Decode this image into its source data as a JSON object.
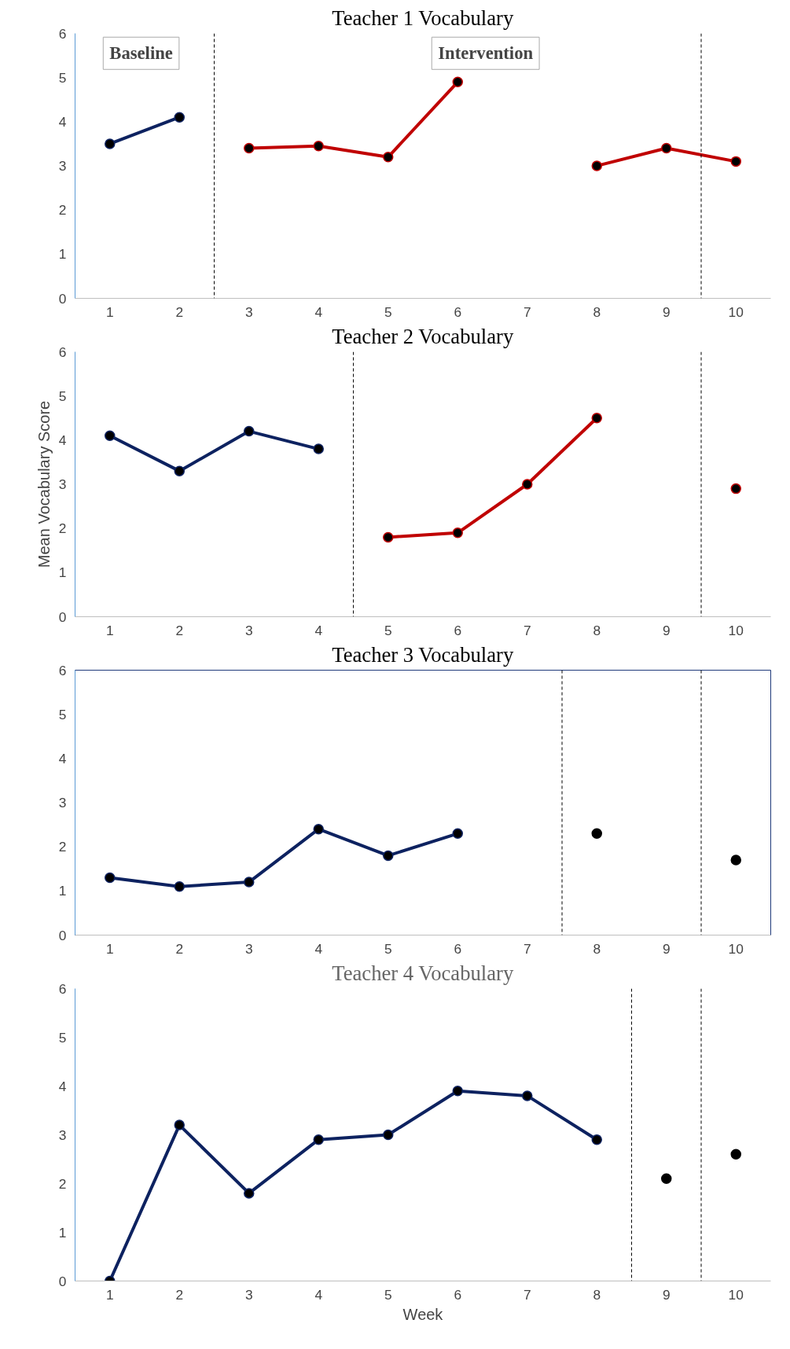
{
  "chart_data": [
    {
      "type": "line",
      "title": "Teacher 1 Vocabulary",
      "xlim": [
        0.5,
        10.5
      ],
      "xticks": [
        1,
        2,
        3,
        4,
        5,
        6,
        7,
        8,
        9,
        10
      ],
      "ylim": [
        0,
        6
      ],
      "yticks": [
        0,
        1,
        2,
        3,
        4,
        5,
        6
      ],
      "grid": false,
      "marker": "circle",
      "line_style": "solid",
      "annotations": [
        "Baseline",
        "Intervention"
      ],
      "ref_lines": [
        {
          "axis": "x",
          "value": 2.5,
          "color": "#000000",
          "line_style": "dashed"
        },
        {
          "axis": "x",
          "value": 9.5,
          "color": "#000000",
          "line_style": "dashed"
        }
      ],
      "series": [
        {
          "color": "#0d2260",
          "x": [
            1,
            2
          ],
          "values": [
            3.5,
            4.1
          ]
        },
        {
          "color": "#c00000",
          "x": [
            3,
            4,
            5,
            6,
            7,
            8,
            9,
            10
          ],
          "values": [
            3.4,
            3.45,
            3.2,
            4.9,
            null,
            3.0,
            3.4,
            3.1
          ]
        }
      ]
    },
    {
      "type": "line",
      "title": "Teacher 2 Vocabulary",
      "ylabel": "Mean Vocabulary Score",
      "xlim": [
        0.5,
        10.5
      ],
      "xticks": [
        1,
        2,
        3,
        4,
        5,
        6,
        7,
        8,
        9,
        10
      ],
      "ylim": [
        0,
        6
      ],
      "yticks": [
        0,
        1,
        2,
        3,
        4,
        5,
        6
      ],
      "grid": false,
      "marker": "circle",
      "line_style": "solid",
      "ref_lines": [
        {
          "axis": "x",
          "value": 4.5,
          "color": "#000000",
          "line_style": "dashed"
        },
        {
          "axis": "x",
          "value": 9.5,
          "color": "#000000",
          "line_style": "dashed"
        }
      ],
      "series": [
        {
          "color": "#0d2260",
          "x": [
            1,
            2,
            3,
            4
          ],
          "values": [
            4.1,
            3.3,
            4.2,
            3.8
          ]
        },
        {
          "color": "#c00000",
          "x": [
            5,
            6,
            7,
            8
          ],
          "values": [
            1.8,
            1.9,
            3.0,
            4.5
          ]
        },
        {
          "type": "scatter",
          "color": "#c00000",
          "x": [
            10
          ],
          "values": [
            2.9
          ]
        }
      ]
    },
    {
      "type": "line",
      "title": "Teacher 3 Vocabulary",
      "xlim": [
        0.5,
        10.5
      ],
      "xticks": [
        1,
        2,
        3,
        4,
        5,
        6,
        7,
        8,
        9,
        10
      ],
      "ylim": [
        0,
        6
      ],
      "yticks": [
        0,
        1,
        2,
        3,
        4,
        5,
        6
      ],
      "grid": false,
      "marker": "circle",
      "line_style": "solid",
      "ref_lines": [
        {
          "axis": "x",
          "value": 7.5,
          "color": "#000000",
          "line_style": "dashed"
        },
        {
          "axis": "x",
          "value": 9.5,
          "color": "#000000",
          "line_style": "dashed"
        }
      ],
      "series": [
        {
          "color": "#0d2260",
          "x": [
            1,
            2,
            3,
            4,
            5,
            6
          ],
          "values": [
            1.3,
            1.1,
            1.2,
            2.4,
            1.8,
            2.3
          ]
        },
        {
          "type": "scatter",
          "color": "#000000",
          "x": [
            8,
            10
          ],
          "values": [
            2.3,
            1.7
          ]
        }
      ]
    },
    {
      "type": "line",
      "title": "Teacher 4 Vocabulary",
      "xlabel": "Week",
      "xlim": [
        0.5,
        10.5
      ],
      "xticks": [
        1,
        2,
        3,
        4,
        5,
        6,
        7,
        8,
        9,
        10
      ],
      "ylim": [
        0,
        6
      ],
      "yticks": [
        0,
        1,
        2,
        3,
        4,
        5,
        6
      ],
      "grid": false,
      "marker": "circle",
      "line_style": "solid",
      "ref_lines": [
        {
          "axis": "x",
          "value": 8.5,
          "color": "#000000",
          "line_style": "dashed"
        },
        {
          "axis": "x",
          "value": 9.5,
          "color": "#000000",
          "line_style": "dashed"
        }
      ],
      "series": [
        {
          "color": "#0d2260",
          "x": [
            1,
            2,
            3,
            4,
            5,
            6,
            7,
            8
          ],
          "values": [
            0,
            3.2,
            1.8,
            2.9,
            3.0,
            3.9,
            3.8,
            2.9
          ]
        },
        {
          "type": "scatter",
          "color": "#000000",
          "x": [
            9,
            10
          ],
          "values": [
            2.1,
            2.6
          ]
        }
      ]
    }
  ]
}
